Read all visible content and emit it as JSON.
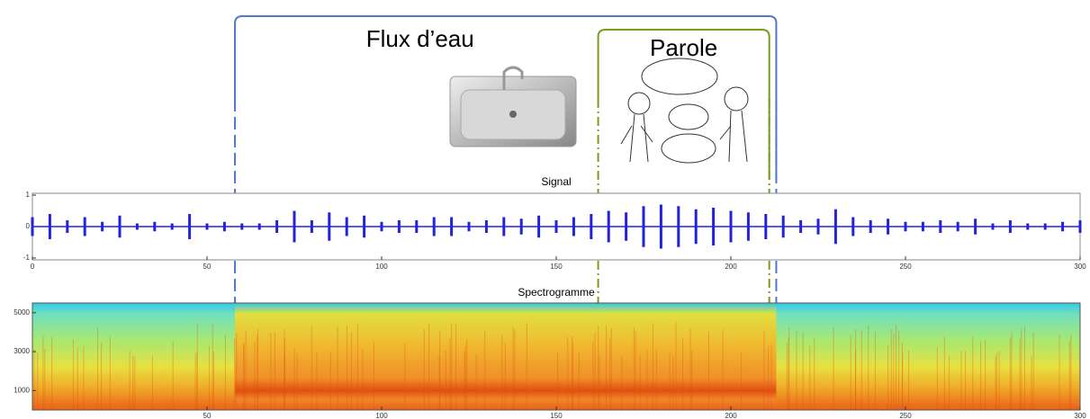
{
  "annotations": {
    "water": {
      "label": "Flux d’eau",
      "xrange": [
        58,
        213
      ]
    },
    "speech": {
      "label": "Parole",
      "xrange": [
        162,
        211
      ]
    }
  },
  "chart_data": [
    {
      "type": "line",
      "title": "Signal",
      "color": "#2222dd",
      "x": [
        0,
        5,
        10,
        15,
        20,
        25,
        30,
        35,
        40,
        45,
        50,
        55,
        60,
        65,
        70,
        75,
        80,
        85,
        90,
        95,
        100,
        105,
        110,
        115,
        120,
        125,
        130,
        135,
        140,
        145,
        150,
        155,
        160,
        165,
        170,
        175,
        180,
        185,
        190,
        195,
        200,
        205,
        210,
        215,
        220,
        225,
        230,
        235,
        240,
        245,
        250,
        255,
        260,
        265,
        270,
        275,
        280,
        285,
        290,
        295,
        300
      ],
      "values": [
        0.3,
        0.4,
        0.2,
        0.3,
        0.15,
        0.35,
        0.1,
        0.15,
        0.1,
        0.4,
        0.1,
        0.15,
        0.1,
        0.1,
        0.2,
        0.5,
        0.2,
        0.45,
        0.3,
        0.35,
        0.15,
        0.2,
        0.2,
        0.3,
        0.3,
        0.15,
        0.2,
        0.3,
        0.25,
        0.35,
        0.2,
        0.3,
        0.4,
        0.5,
        0.45,
        0.65,
        0.7,
        0.65,
        0.55,
        0.6,
        0.5,
        0.45,
        0.4,
        0.35,
        0.2,
        0.25,
        0.55,
        0.3,
        0.2,
        0.25,
        0.15,
        0.15,
        0.2,
        0.15,
        0.25,
        0.1,
        0.2,
        0.1,
        0.1,
        0.15,
        0.2
      ],
      "xlim": [
        0,
        300
      ],
      "xticks": [
        0,
        50,
        100,
        150,
        200,
        250,
        300
      ],
      "ylim": [
        -1,
        1
      ],
      "yticks": [
        -1,
        0,
        1
      ]
    },
    {
      "type": "heatmap",
      "title": "Spectrogramme",
      "xlim": [
        0,
        300
      ],
      "xticks": [
        50,
        100,
        150,
        200,
        250,
        300
      ],
      "ylim": [
        0,
        5500
      ],
      "yticks": [
        1000,
        3000,
        5000
      ]
    }
  ]
}
